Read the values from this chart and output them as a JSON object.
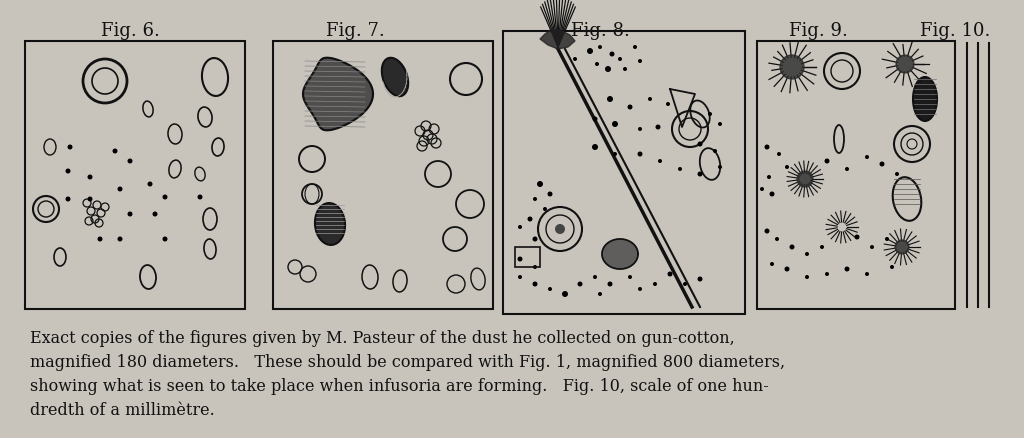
{
  "bg_color": "#c8c4bc",
  "inner_color": "#d8d5ce",
  "box_color": "#111111",
  "title_labels": [
    "Fig. 6.",
    "Fig. 7.",
    "Fig. 8.",
    "Fig. 9.",
    "Fig. 10."
  ],
  "caption_line1": "Exact copies of the figures given by M. Pasteur of the dust he collected on gun-cotton,",
  "caption_line2": "magnified 180 diameters.   These should be compared with Fig. 1, magnified 800 diameters,",
  "caption_line3": "showing what is seen to take place when infusoria are forming.   Fig. 10, scale of one hun-",
  "caption_line4": "dredth of a millimètre.",
  "caption_fontsize": 11.5,
  "title_fontsize": 13
}
